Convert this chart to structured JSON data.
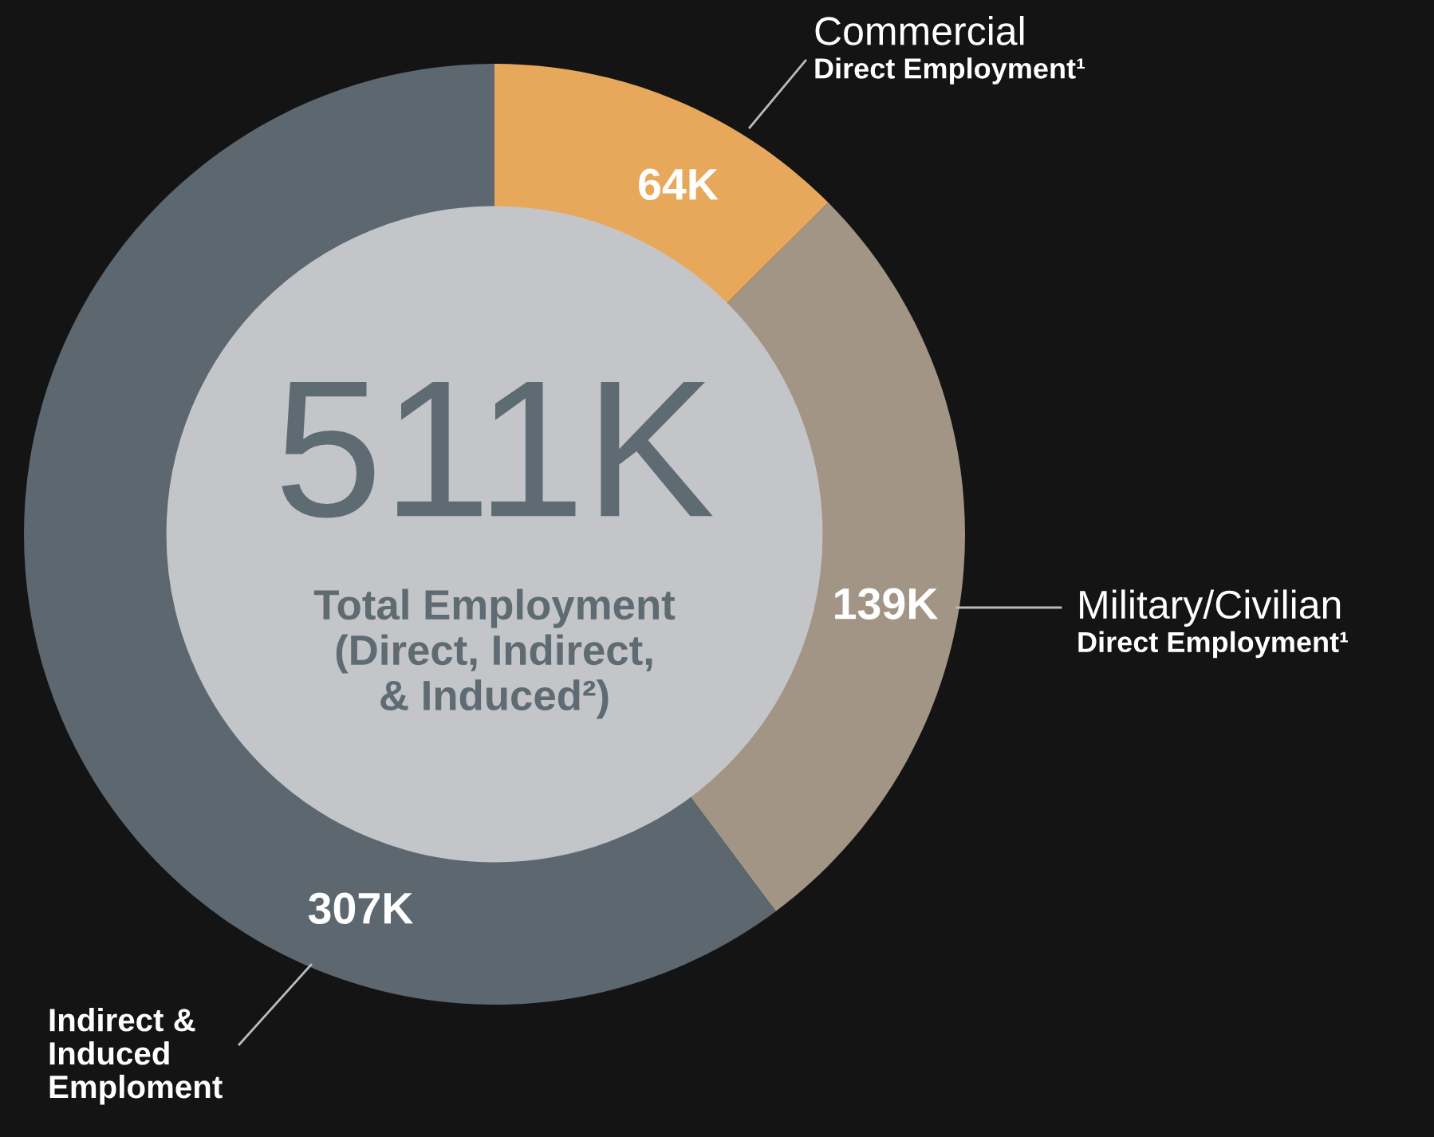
{
  "chart_data": {
    "type": "donut",
    "categories": [
      "Commercial\nDirect Employment¹",
      "Military/Civilian\nDirect Employment¹",
      "Indirect &\nInduced\nEmploment"
    ],
    "values": [
      64,
      139,
      307
    ],
    "colors": [
      "#e8a85c",
      "#a39585",
      "#5c6770"
    ],
    "value_labels": [
      "64K",
      "139K",
      "307K"
    ],
    "annotations": [
      "511K",
      "Total Employment\n(Direct, Indirect,\n& Induced²)"
    ]
  }
}
